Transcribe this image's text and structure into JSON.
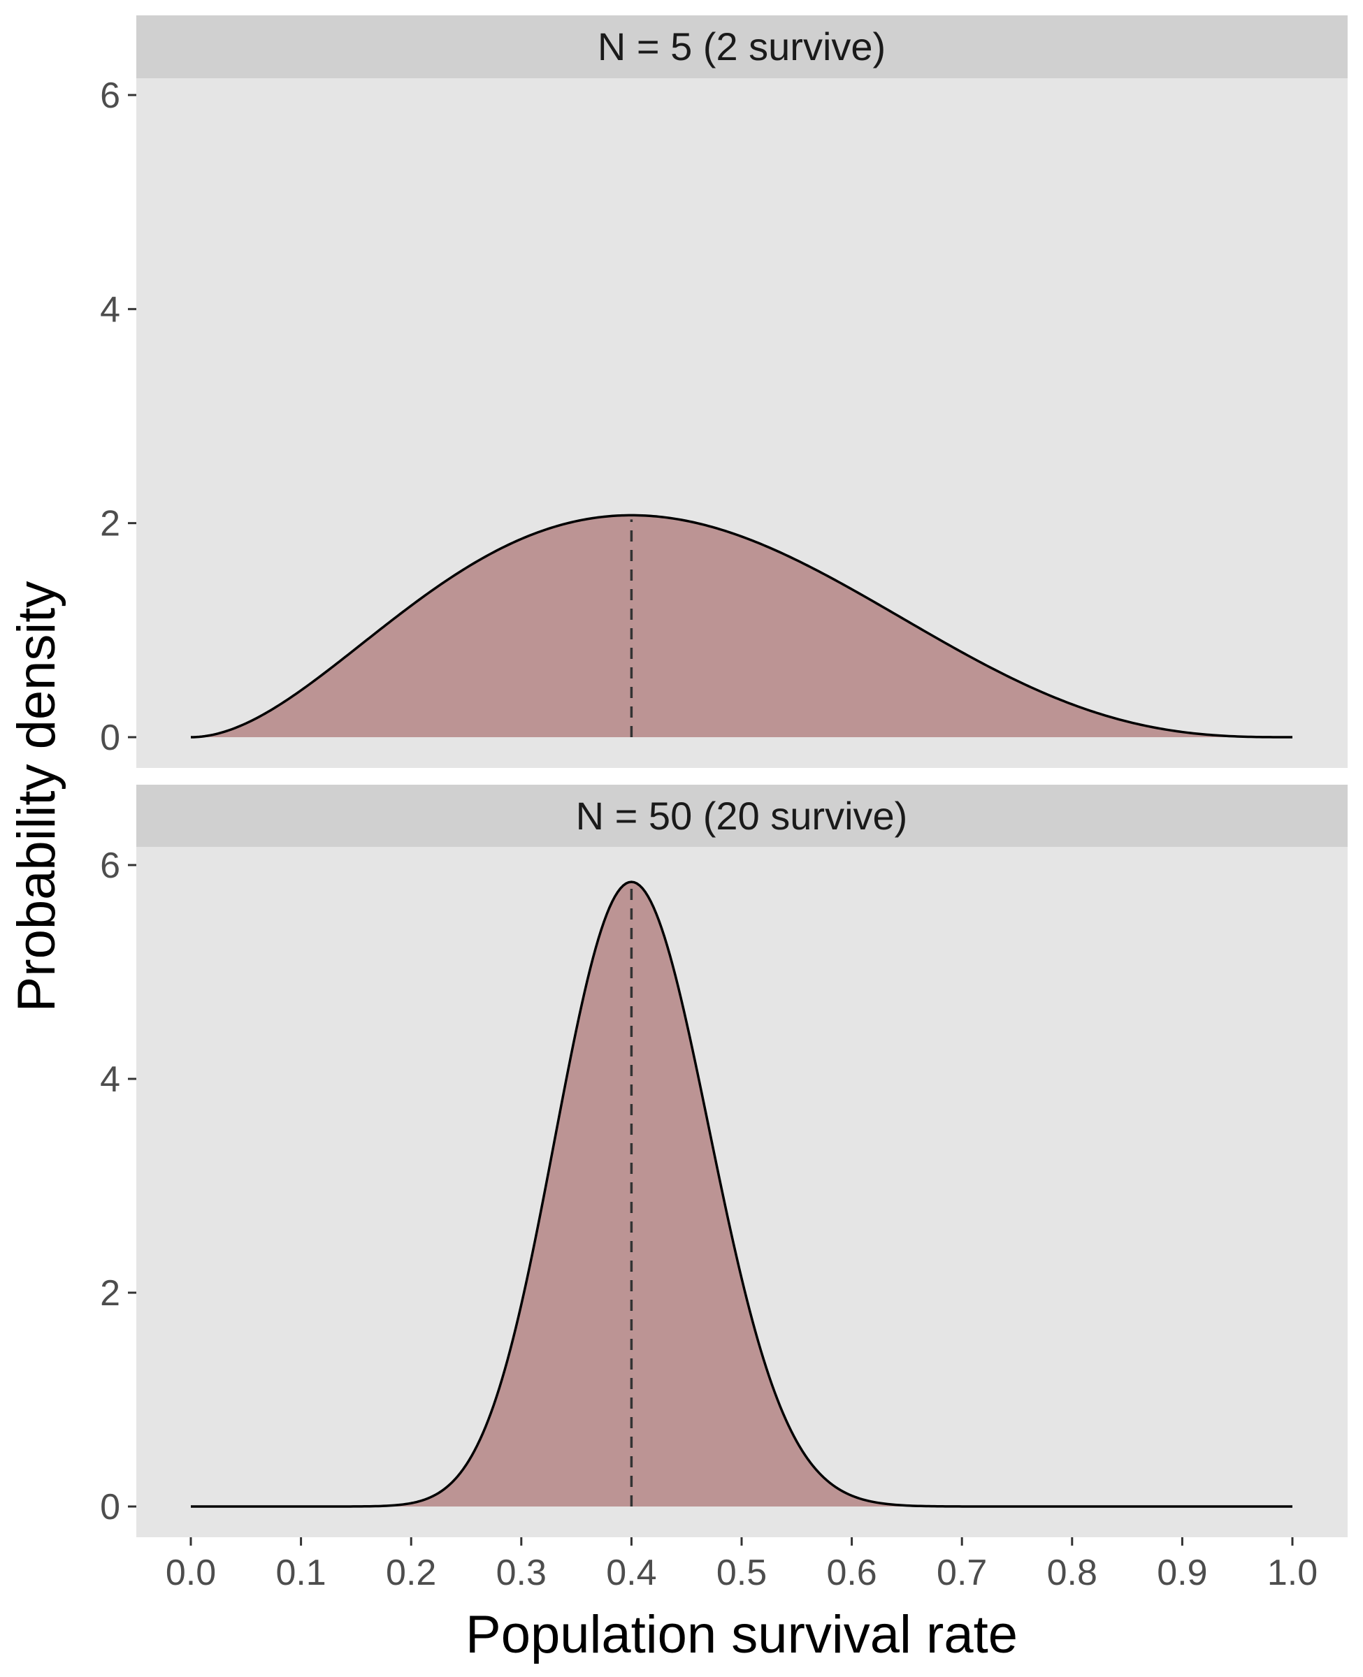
{
  "chart_data": {
    "type": "area",
    "xlabel": "Population survival rate",
    "ylabel": "Probability density",
    "xlim": [
      0.0,
      1.0
    ],
    "ylim": [
      0,
      6.4
    ],
    "x_ticks": [
      "0.0",
      "0.1",
      "0.2",
      "0.3",
      "0.4",
      "0.5",
      "0.6",
      "0.7",
      "0.8",
      "0.9",
      "1.0"
    ],
    "y_ticks": [
      "0",
      "2",
      "4",
      "6"
    ],
    "grid": false,
    "panels": [
      {
        "title": "N = 5 (2 survive)",
        "distribution": "beta",
        "alpha": 3,
        "beta": 4,
        "mode": 0.4,
        "peak_density": 2.07,
        "fill_color": "#bc9494",
        "line_color": "#000000",
        "reference_line_x": 0.4
      },
      {
        "title": "N = 50 (20 survive)",
        "distribution": "beta",
        "alpha": 21,
        "beta": 31,
        "mode": 0.4,
        "peak_density": 5.85,
        "fill_color": "#bc9494",
        "line_color": "#000000",
        "reference_line_x": 0.4
      }
    ],
    "colors": {
      "panel_background": "#e5e5e5",
      "strip_background": "#d0d0d0",
      "fill": "#bc9494",
      "dashed_line": "#333333",
      "tick_text": "#4d4d4d"
    }
  }
}
